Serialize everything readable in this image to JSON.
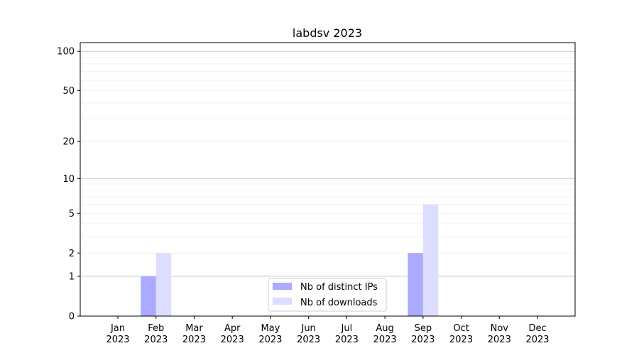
{
  "chart_data": {
    "type": "bar",
    "title": "labdsv 2023",
    "xlabel": "",
    "ylabel": "",
    "yscale": "log(1+y)",
    "ylim": [
      0,
      116
    ],
    "grid": true,
    "legend_position": "lower-center",
    "categories": [
      "Jan\n2023",
      "Feb\n2023",
      "Mar\n2023",
      "Apr\n2023",
      "May\n2023",
      "Jun\n2023",
      "Jul\n2023",
      "Aug\n2023",
      "Sep\n2023",
      "Oct\n2023",
      "Nov\n2023",
      "Dec\n2023"
    ],
    "yticks": [
      0,
      1,
      2,
      5,
      10,
      20,
      50,
      100
    ],
    "series": [
      {
        "name": "Nb of distinct IPs",
        "color": "#aaaaff",
        "values": [
          0,
          1,
          0,
          0,
          0,
          0,
          0,
          0,
          2,
          0,
          0,
          0
        ]
      },
      {
        "name": "Nb of downloads",
        "color": "#ddddff",
        "values": [
          0,
          2,
          0,
          0,
          0,
          0,
          0,
          0,
          6,
          0,
          0,
          0
        ]
      }
    ]
  }
}
